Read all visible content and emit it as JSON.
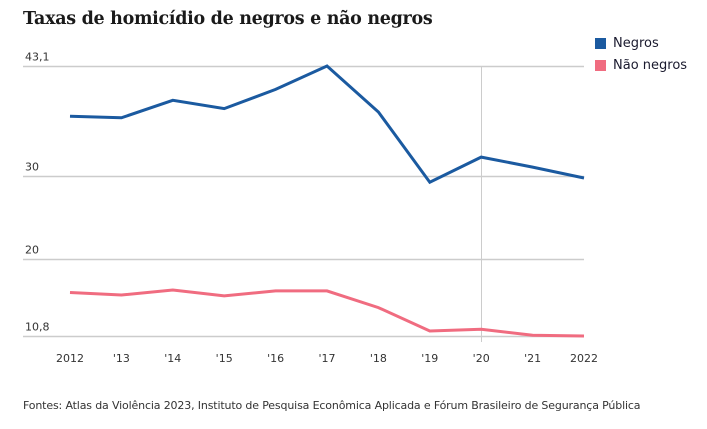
{
  "chart_data": {
    "type": "line",
    "title": "Taxas de homicídio de negros e não negros",
    "xlabel": "",
    "ylabel": "",
    "x": [
      2012,
      2013,
      2014,
      2015,
      2016,
      2017,
      2018,
      2019,
      2020,
      2021,
      2022
    ],
    "x_tick_labels": [
      "2012",
      "'13",
      "'14",
      "'15",
      "'16",
      "'17",
      "'18",
      "'19",
      "'20",
      "'21",
      "2022"
    ],
    "y_ticks": [
      43.1,
      30,
      20,
      10.8
    ],
    "y_tick_labels": [
      "43,1",
      "30",
      "20",
      "10,8"
    ],
    "ylim": [
      10.8,
      43.1
    ],
    "grid": true,
    "reference_line_x": 2020,
    "legend_position": "top-right",
    "series": [
      {
        "name": "Negros",
        "color": "#1b5aa0",
        "values": [
          37.1,
          36.9,
          39.0,
          38.0,
          40.3,
          43.1,
          37.6,
          29.2,
          32.2,
          31.0,
          29.7
        ]
      },
      {
        "name": "Não negros",
        "color": "#f06c80",
        "values": [
          16.0,
          15.7,
          16.3,
          15.6,
          16.2,
          16.2,
          14.2,
          11.4,
          11.6,
          10.9,
          10.8
        ]
      }
    ],
    "source": "Fontes: Atlas da Violência 2023, Instituto de Pesquisa Econômica Aplicada e Fórum Brasileiro de Segurança Pública"
  }
}
